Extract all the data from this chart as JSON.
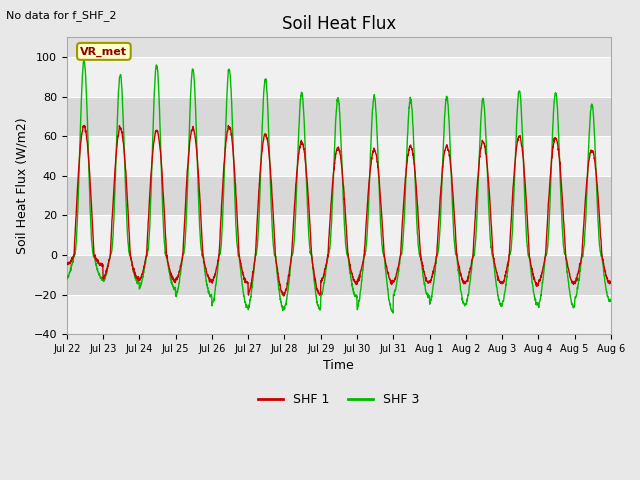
{
  "title": "Soil Heat Flux",
  "ylabel": "Soil Heat Flux (W/m2)",
  "xlabel": "Time",
  "note": "No data for f_SHF_2",
  "vr_met_label": "VR_met",
  "ylim": [
    -40,
    110
  ],
  "yticks": [
    -40,
    -20,
    0,
    20,
    40,
    60,
    80,
    100
  ],
  "fig_bg_color": "#e8e8e8",
  "plot_bg_color": "#e0e0e0",
  "shf1_color": "#cc0000",
  "shf3_color": "#00bb00",
  "legend_labels": [
    "SHF 1",
    "SHF 3"
  ],
  "xtick_labels": [
    "Jul 22",
    "Jul 23",
    "Jul 24",
    "Jul 25",
    "Jul 26",
    "Jul 27",
    "Jul 28",
    "Jul 29",
    "Jul 30",
    "Jul 31",
    "Aug 1",
    "Aug 2",
    "Aug 3",
    "Aug 4",
    "Aug 5",
    "Aug 6"
  ],
  "n_days": 15,
  "title_fontsize": 12,
  "axis_fontsize": 9,
  "tick_fontsize": 8,
  "shf1_peaks": [
    65,
    64,
    63,
    64,
    65,
    61,
    57,
    54,
    53,
    55,
    55,
    57,
    60,
    59,
    53
  ],
  "shf1_mins": [
    -5,
    -12,
    -13,
    -13,
    -14,
    -20,
    -20,
    -14,
    -14,
    -14,
    -14,
    -14,
    -15,
    -14,
    -14
  ],
  "shf3_peaks": [
    98,
    91,
    96,
    94,
    94,
    89,
    82,
    79,
    80,
    79,
    80,
    79,
    83,
    82,
    76
  ],
  "shf3_mins": [
    -12,
    -14,
    -17,
    -21,
    -26,
    -27,
    -27,
    -21,
    -28,
    -21,
    -25,
    -25,
    -25,
    -26,
    -23
  ]
}
